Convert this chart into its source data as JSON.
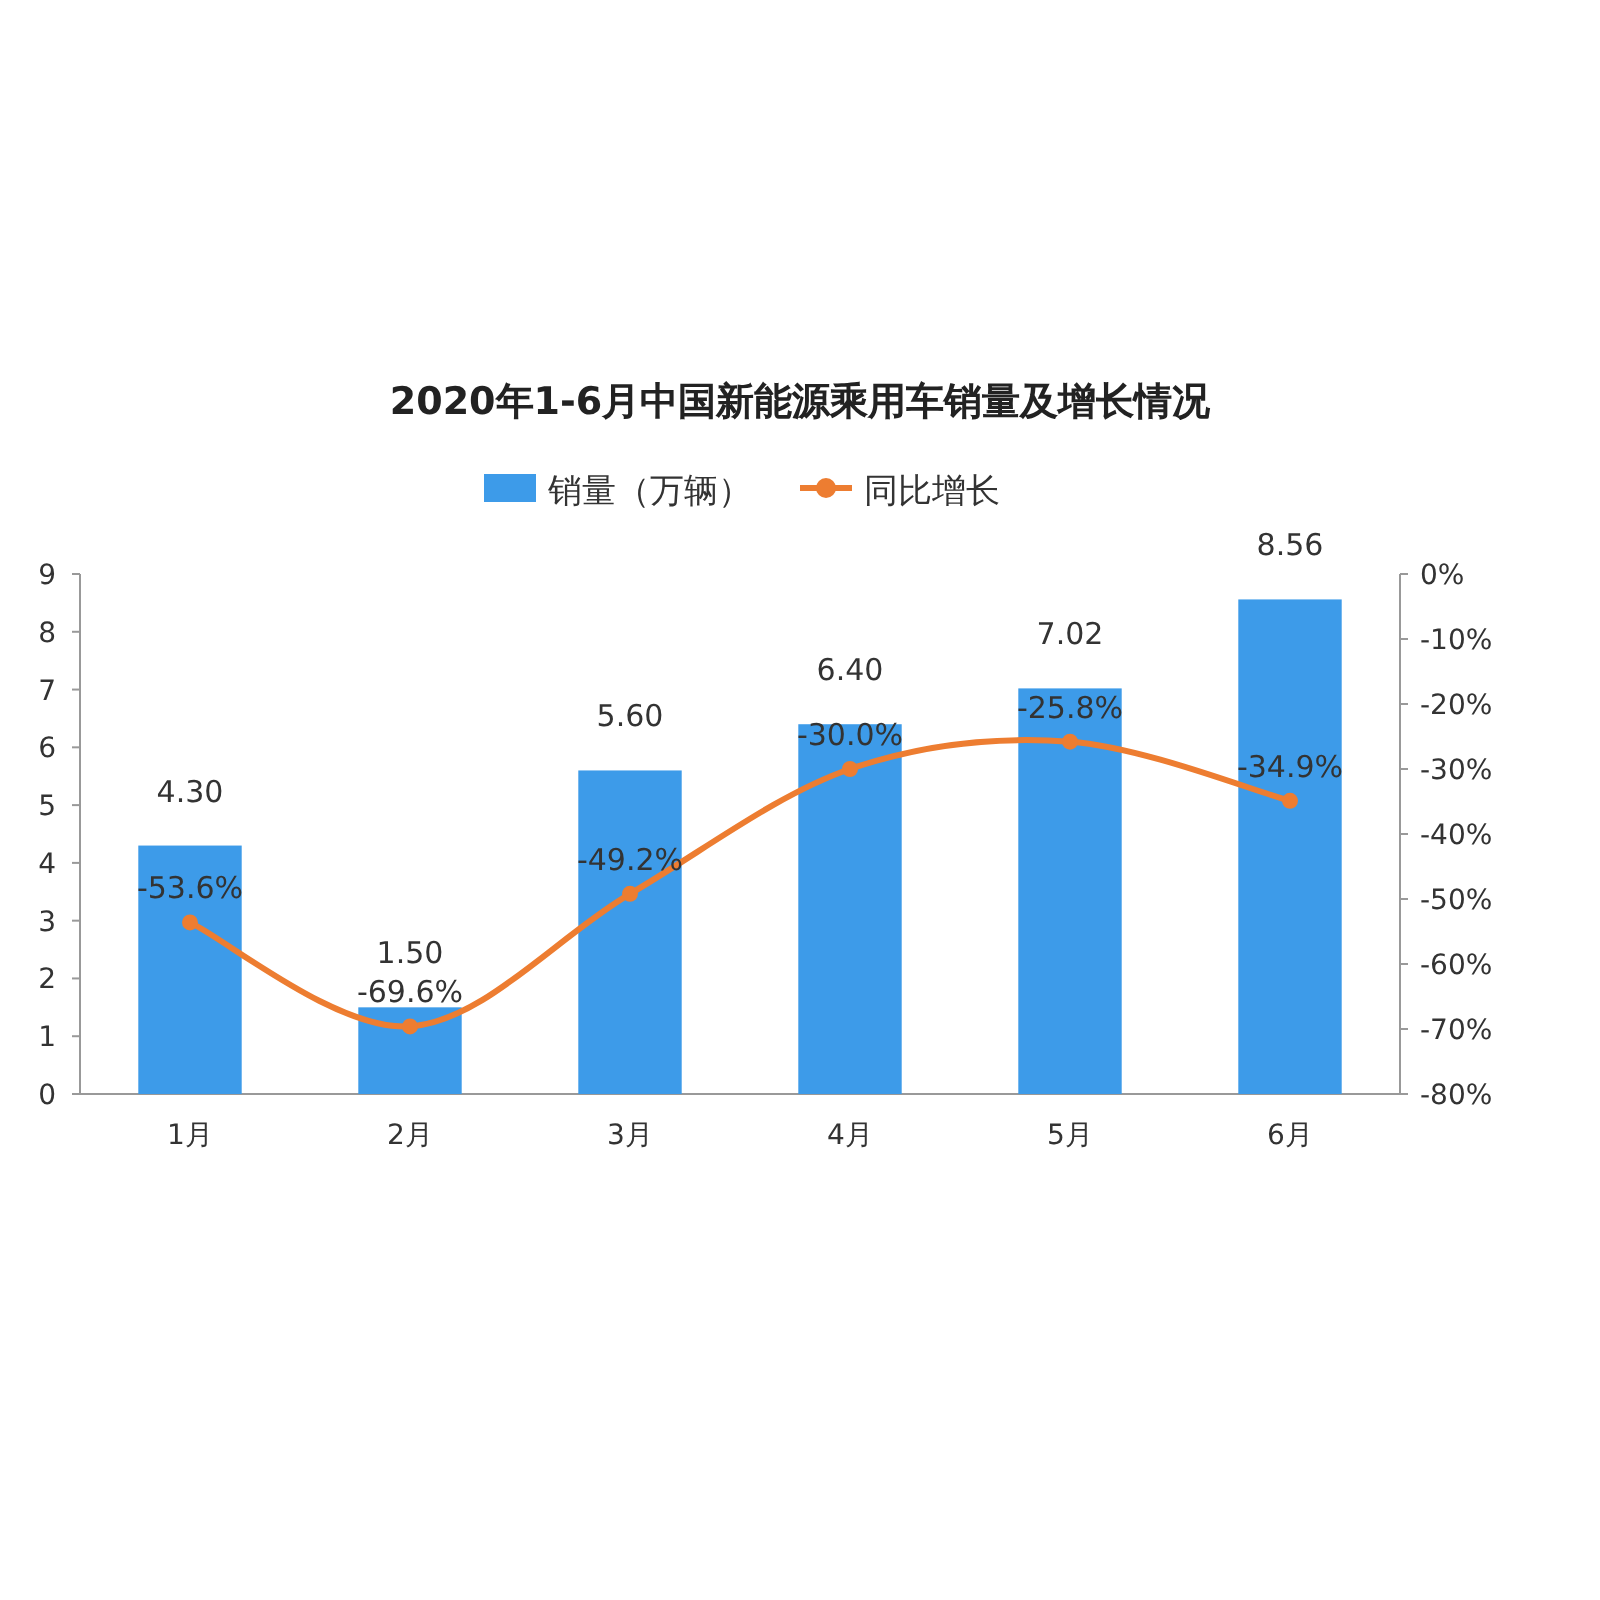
{
  "chart_data": {
    "type": "bar",
    "title": "2020年1-6月中国新能源乘用车销量及增长情况",
    "categories": [
      "1月",
      "2月",
      "3月",
      "4月",
      "5月",
      "6月"
    ],
    "series": [
      {
        "name": "销量（万辆）",
        "color": "#3d9be9",
        "values": [
          4.3,
          1.5,
          5.6,
          6.4,
          7.02,
          8.56
        ],
        "value_labels": [
          "4.30",
          "1.50",
          "5.60",
          "6.40",
          "7.02",
          "8.56"
        ]
      },
      {
        "name": "同比增长",
        "type": "line",
        "axis": "y2",
        "color": "#ed7d31",
        "values": [
          -53.6,
          -69.6,
          -49.2,
          -30.0,
          -25.8,
          -34.9
        ],
        "value_labels": [
          "-53.6%",
          "-69.6%",
          "-49.2%",
          "-30.0%",
          "-25.8%",
          "-34.9%"
        ]
      }
    ],
    "ylim": [
      0,
      9
    ],
    "yticks": [
      0,
      1,
      2,
      3,
      4,
      5,
      6,
      7,
      8,
      9
    ],
    "y2lim": [
      -80,
      0
    ],
    "y2ticks": [
      {
        "value": 0,
        "label": "0%"
      },
      {
        "value": -10,
        "label": "-10%"
      },
      {
        "value": -20,
        "label": "-20%"
      },
      {
        "value": -30,
        "label": "-30%"
      },
      {
        "value": -40,
        "label": "-40%"
      },
      {
        "value": -50,
        "label": "-50%"
      },
      {
        "value": -60,
        "label": "-60%"
      },
      {
        "value": -70,
        "label": "-70%"
      },
      {
        "value": -80,
        "label": "-80%"
      }
    ],
    "legend": "top",
    "marker": "circle",
    "line_style": "solid"
  }
}
